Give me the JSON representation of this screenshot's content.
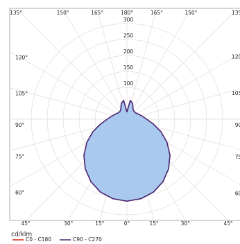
{
  "chart_data": {
    "type": "polar",
    "unit": "cd/klm",
    "angles": [
      0,
      10,
      20,
      30,
      40,
      50,
      60,
      70,
      80,
      90,
      100,
      110,
      120,
      130,
      140,
      150,
      160,
      170,
      180
    ],
    "series": [
      {
        "name": "C0 - C180",
        "color": "#e03020",
        "values": [
          257,
          253,
          243,
          226,
          203,
          176,
          145,
          113,
          83,
          62,
          50,
          42,
          36,
          33,
          33,
          38,
          52,
          60,
          22
        ]
      },
      {
        "name": "C90 - C270",
        "color": "#4b2a7a",
        "values": [
          257,
          253,
          243,
          226,
          203,
          176,
          145,
          113,
          83,
          62,
          50,
          42,
          36,
          33,
          33,
          38,
          52,
          60,
          22
        ]
      }
    ],
    "fill": "#a9c9ee",
    "rlim": [
      0,
      350
    ],
    "rticks": [
      100,
      150,
      200,
      250,
      300
    ],
    "thetaticks": [
      {
        "value": 0,
        "label": "0°"
      },
      {
        "value": 15,
        "label": "15°"
      },
      {
        "value": 30,
        "label": "30°"
      },
      {
        "value": 45,
        "label": "45°"
      },
      {
        "value": 60,
        "label": "60°"
      },
      {
        "value": 75,
        "label": "75°"
      },
      {
        "value": 90,
        "label": "90°"
      },
      {
        "value": 105,
        "label": "105°"
      },
      {
        "value": 120,
        "label": "120°"
      },
      {
        "value": 135,
        "label": "135°"
      },
      {
        "value": 150,
        "label": "150°"
      },
      {
        "value": 165,
        "label": "165°"
      },
      {
        "value": 180,
        "label": "180°"
      }
    ],
    "grid": true
  }
}
